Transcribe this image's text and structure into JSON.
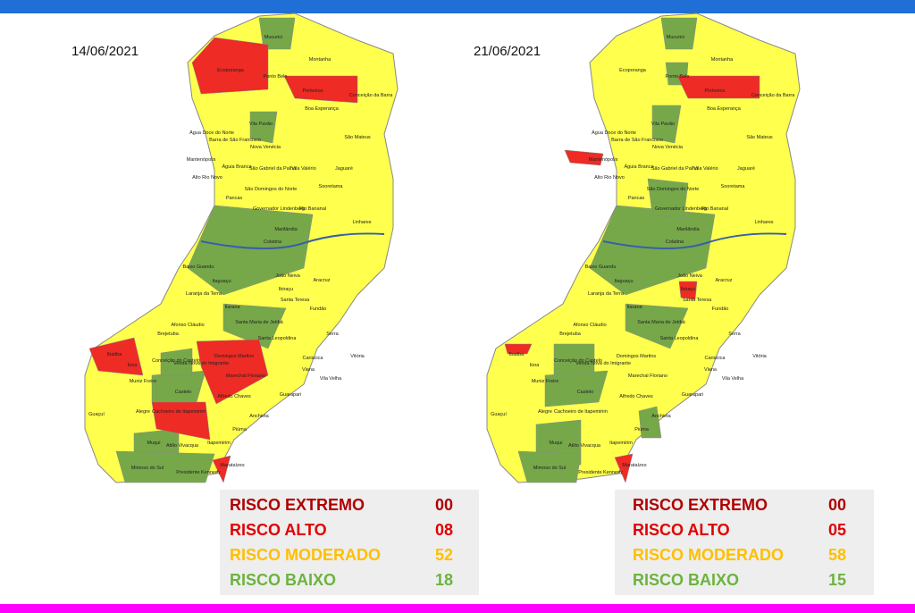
{
  "maps": [
    {
      "date": "14/06/2021",
      "legend": [
        {
          "label": "RISCO EXTREMO",
          "count": "00"
        },
        {
          "label": "RISCO ALTO",
          "count": "08"
        },
        {
          "label": "RISCO MODERADO",
          "count": "52"
        },
        {
          "label": "RISCO BAIXO",
          "count": "18"
        }
      ]
    },
    {
      "date": "21/06/2021",
      "legend": [
        {
          "label": "RISCO EXTREMO",
          "count": "00"
        },
        {
          "label": "RISCO ALTO",
          "count": "05"
        },
        {
          "label": "RISCO MODERADO",
          "count": "58"
        },
        {
          "label": "RISCO BAIXO",
          "count": "15"
        }
      ]
    }
  ],
  "municipalities": [
    "Mucurici",
    "Montanha",
    "Ecoporanga",
    "Ponto Belo",
    "Pinheiros",
    "Conceição da Barra",
    "Boa Esperança",
    "Água Doce do Norte",
    "Vila Pavão",
    "Barra de São Francisco",
    "Nova Venécia",
    "São Mateus",
    "Mantenópolis",
    "Águia Branca",
    "Alto Rio Novo",
    "São Gabriel da Palha",
    "Vila Valério",
    "Jaguaré",
    "Pancas",
    "São Domingos do Norte",
    "Sooretama",
    "Governador Lindenberg",
    "Rio Bananal",
    "Linhares",
    "Marilândia",
    "Colatina",
    "Baixo Guandu",
    "João Neiva",
    "Aracruz",
    "Itaguaçu",
    "Ibiraçu",
    "Laranja da Terra",
    "Santa Teresa",
    "Itarana",
    "Fundão",
    "Afonso Cláudio",
    "Santa Maria de Jetibá",
    "Santa Leopoldina",
    "Serra",
    "Brejetuba",
    "Vitória",
    "Conceição do Castelo",
    "Domingos Martins",
    "Cariacica",
    "Ibatiba",
    "Iúna",
    "Venda Nova do Imigrante",
    "Marechal Floriano",
    "Viana",
    "Muniz Freire",
    "Castelo",
    "Alfredo Chaves",
    "Vila Velha",
    "Guarapari",
    "Alegre",
    "Cachoeiro de Itapemirim",
    "Anchieta",
    "Muqui",
    "Atilio Vivacqua",
    "Itapemirim",
    "Mimoso do Sul",
    "Presidente Kennedy",
    "Marataízes",
    "Guaçuí",
    "Piúma"
  ]
}
